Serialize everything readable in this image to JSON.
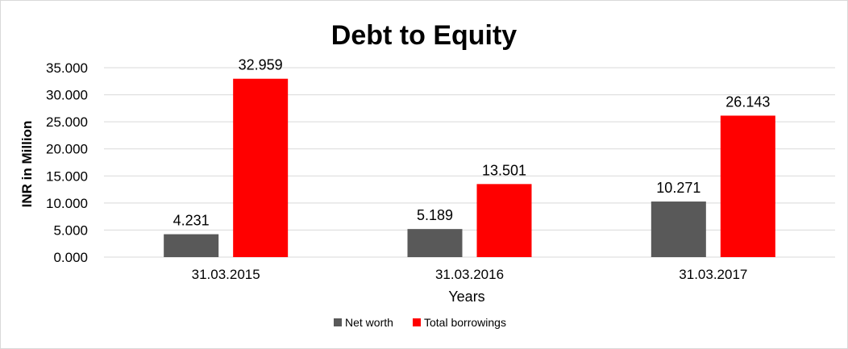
{
  "chart_data": {
    "type": "bar",
    "title": "Debt to Equity",
    "xlabel": "Years",
    "ylabel": "INR in Million",
    "categories": [
      "31.03.2015",
      "31.03.2016",
      "31.03.2017"
    ],
    "series": [
      {
        "name": "Net worth",
        "values": [
          4.231,
          5.189,
          10.271
        ],
        "color": "#595959"
      },
      {
        "name": "Total borrowings",
        "values": [
          32.959,
          13.501,
          26.143
        ],
        "color": "#ff0000"
      }
    ],
    "ylim": [
      0,
      35
    ],
    "yticks": [
      "0.000",
      "5.000",
      "10.000",
      "15.000",
      "20.000",
      "25.000",
      "30.000",
      "35.000"
    ],
    "data_labels": [
      [
        "4.231",
        "5.189",
        "10.271"
      ],
      [
        "32.959",
        "13.501",
        "26.143"
      ]
    ],
    "grid": true,
    "legend": "bottom"
  }
}
